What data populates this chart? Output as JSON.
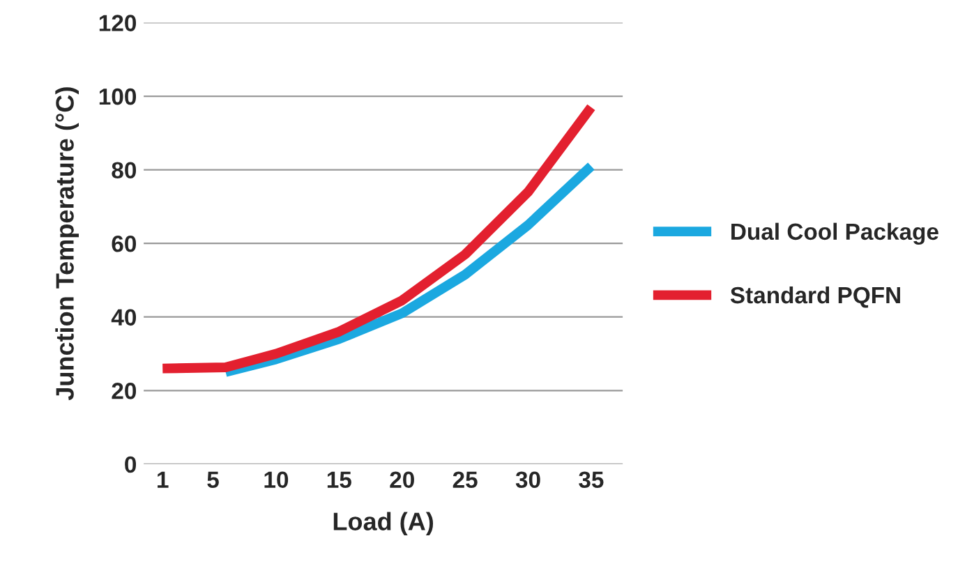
{
  "chart_data": {
    "type": "line",
    "xlabel": "Load (A)",
    "ylabel": "Junction Temperature (°C)",
    "xlim": [
      -0.5,
      37.5
    ],
    "xticks": [
      1,
      5,
      10,
      15,
      20,
      25,
      30,
      35
    ],
    "ylim": [
      0,
      120
    ],
    "yticks": [
      0,
      20,
      40,
      60,
      80,
      100,
      120
    ],
    "grid": "y",
    "legend": "right",
    "line_style": "solid",
    "series": [
      {
        "name": "Dual Cool Package",
        "color": "#1ba8e0",
        "x": [
          6,
          10,
          15,
          20,
          25,
          30,
          35
        ],
        "values": [
          25,
          28.5,
          34,
          41,
          51.5,
          65,
          81
        ]
      },
      {
        "name": "Standard PQFN",
        "color": "#e3202f",
        "x": [
          1,
          6,
          10,
          15,
          20,
          25,
          30,
          35
        ],
        "values": [
          26,
          26.3,
          30,
          36,
          44.5,
          57,
          74,
          97
        ]
      }
    ]
  }
}
